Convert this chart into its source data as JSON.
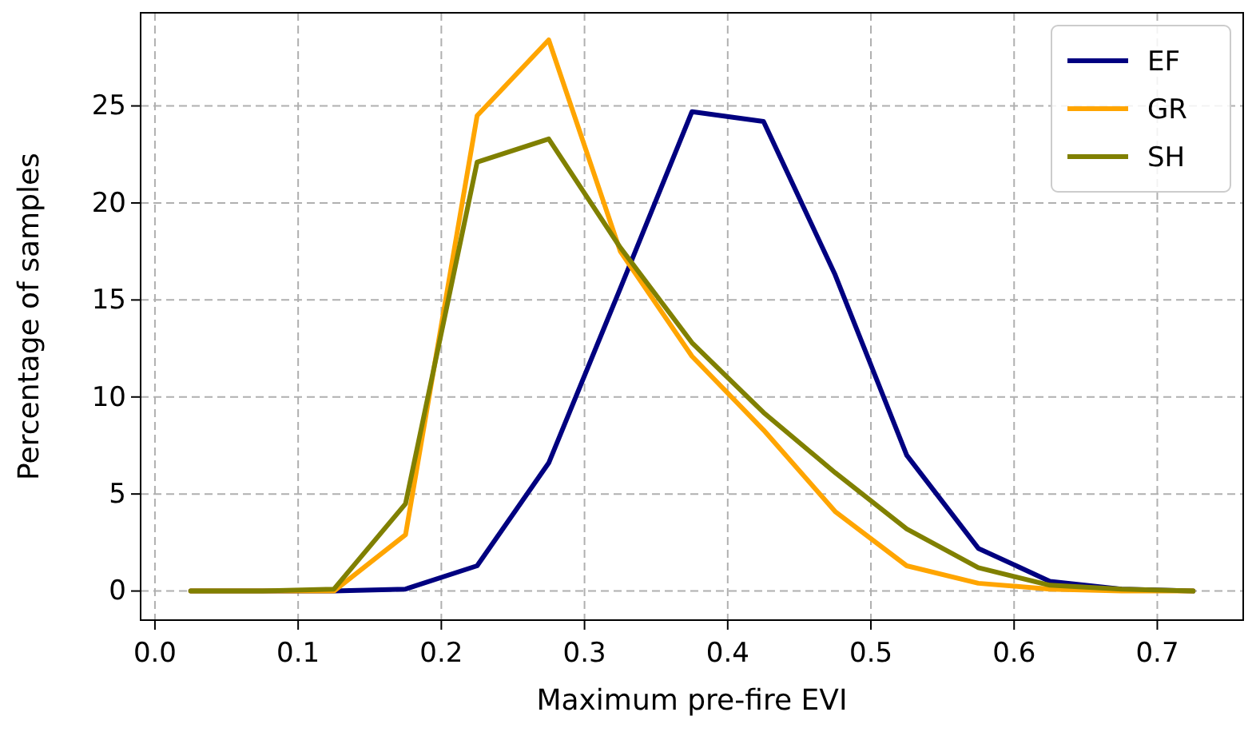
{
  "chart_data": {
    "type": "line",
    "xlabel": "Maximum pre-fire EVI",
    "ylabel": "Percentage of samples",
    "x": [
      0.025,
      0.075,
      0.125,
      0.175,
      0.225,
      0.275,
      0.325,
      0.375,
      0.425,
      0.475,
      0.525,
      0.575,
      0.625,
      0.675,
      0.725
    ],
    "series": [
      {
        "name": "EF",
        "color": "#000080",
        "values": [
          0,
          0,
          0,
          0.1,
          1.3,
          6.6,
          15.6,
          24.7,
          24.2,
          16.3,
          7.0,
          2.2,
          0.5,
          0.1,
          0
        ]
      },
      {
        "name": "GR",
        "color": "#ffa500",
        "values": [
          0,
          0,
          0,
          2.9,
          24.5,
          28.4,
          17.5,
          12.1,
          8.3,
          4.1,
          1.3,
          0.4,
          0.1,
          0,
          0
        ]
      },
      {
        "name": "SH",
        "color": "#808000",
        "values": [
          0,
          0,
          0.1,
          4.5,
          22.1,
          23.3,
          17.7,
          12.8,
          9.2,
          6.1,
          3.2,
          1.2,
          0.3,
          0.1,
          0
        ]
      }
    ],
    "xlim": [
      -0.01,
      0.76
    ],
    "xticks": [
      {
        "value": 0,
        "label": "0.0"
      },
      0.1,
      0.2,
      0.3,
      0.4,
      0.5,
      0.6,
      0.7
    ],
    "ylim": [
      -1.5,
      29.8
    ],
    "yticks": [
      0,
      5,
      10,
      15,
      20,
      25
    ],
    "grid": true,
    "legend": "top right",
    "line_style": "solid"
  }
}
